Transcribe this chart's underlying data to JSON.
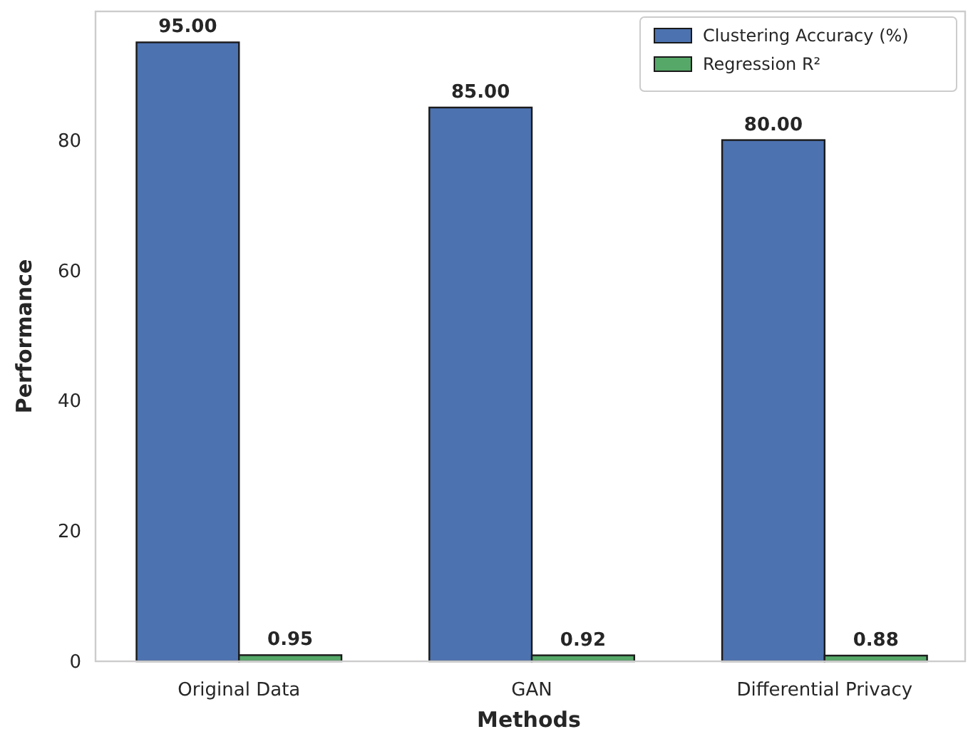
{
  "chart_data": {
    "type": "bar",
    "xlabel": "Methods",
    "ylabel": "Performance",
    "categories": [
      "Original Data",
      "GAN",
      "Differential Privacy"
    ],
    "series": [
      {
        "name": "Clustering Accuracy (%)",
        "color": "#4c72b0",
        "values": [
          95,
          85,
          80
        ],
        "value_labels": [
          "95.00",
          "85.00",
          "80.00"
        ]
      },
      {
        "name": "Regression R²",
        "color": "#55a868",
        "values": [
          0.95,
          0.92,
          0.88
        ],
        "value_labels": [
          "0.95",
          "0.92",
          "0.88"
        ]
      }
    ],
    "ylim": [
      0,
      99.75
    ],
    "yticks": [
      0,
      20,
      40,
      60,
      80
    ],
    "legend": "top right"
  }
}
